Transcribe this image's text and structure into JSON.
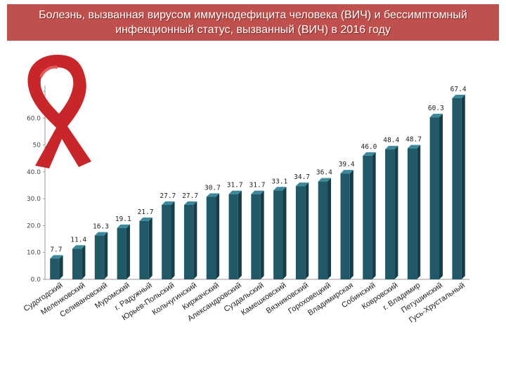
{
  "title_line1": "Болезнь, вызванная вирусом иммунодефицита человека (ВИЧ) и бессимптомный",
  "title_line2": "инфекционный статус, вызванный (ВИЧ) в 2016 году",
  "ribbon_icon": "awareness-ribbon-icon",
  "colors": {
    "bar": "#215968",
    "bar_top": "#3b8a9c",
    "bar_side": "#163e49",
    "title_bg": "#c0504d",
    "ribbon": "#c8262b"
  },
  "chart_data": {
    "type": "bar",
    "categories": [
      "Судогодский",
      "Меленковский",
      "Селивановский",
      "Муромский",
      "г. Радужный",
      "Юрьев-Польский",
      "Кольчугинский",
      "Киржачский",
      "Александровский",
      "Суздальский",
      "Камешковский",
      "Вязниковский",
      "Гороховецкий",
      "Владимирская",
      "Собинский",
      "Ковровский",
      "г. Владимир",
      "Петушинский",
      "Гусь-Хрустальный"
    ],
    "values": [
      7.7,
      11.4,
      16.3,
      19.1,
      21.7,
      27.7,
      27.7,
      30.7,
      31.7,
      31.7,
      33.1,
      34.7,
      36.4,
      39.4,
      46.0,
      48.4,
      48.7,
      60.3,
      67.4
    ],
    "value_labels": [
      "7.7",
      "11.4",
      "16.3",
      "19.1",
      "21.7",
      "27.7",
      "27.7",
      "30.7",
      "31.7",
      "31.7",
      "33.1",
      "34.7",
      "36.4",
      "39.4",
      "46.0",
      "48.4",
      "48.7",
      "60.3",
      "67.4"
    ],
    "y_ticks": [
      "0.0",
      "10.0",
      "20.0",
      "30.0",
      "40.0",
      "50",
      "60.0",
      "70"
    ],
    "ylim": [
      0,
      70
    ],
    "grid": false
  }
}
